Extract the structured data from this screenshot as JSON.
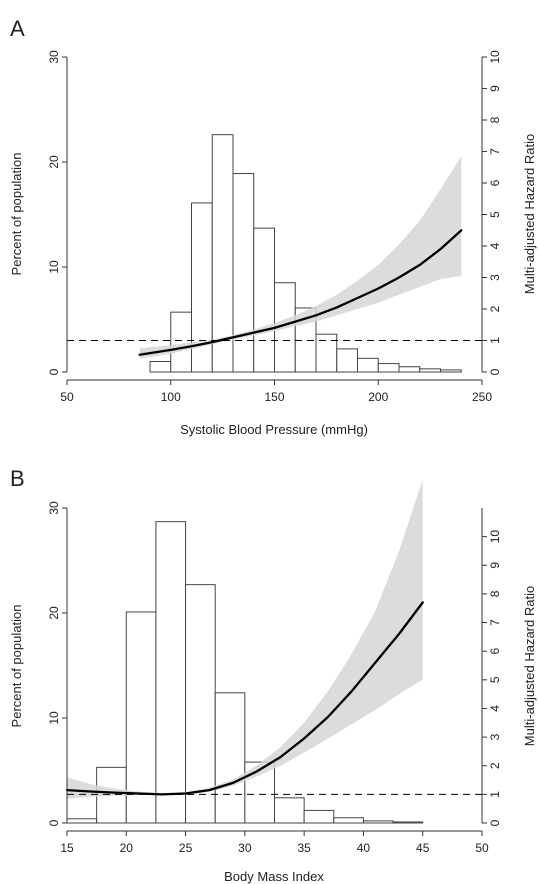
{
  "colors": {
    "axis": "#333333",
    "bar_fill": "#ffffff",
    "bar_stroke": "#444444",
    "band_fill": "#d6d6d6",
    "curve": "#000000",
    "reference_line": "#000000"
  },
  "chart_data": [
    {
      "panel_label": "A",
      "type": "bar+line",
      "xlabel": "Systolic Blood Pressure (mmHg)",
      "ylabel_left": "Percent of population",
      "ylabel_right": "Multi-adjusted Hazard Ratio",
      "xlim": [
        50,
        250
      ],
      "ylim_left": [
        0,
        30
      ],
      "ylim_right": [
        0,
        10
      ],
      "x_ticks": [
        50,
        100,
        150,
        200,
        250
      ],
      "y_ticks_left": [
        0,
        10,
        20,
        30
      ],
      "y_ticks_right": [
        0,
        1,
        2,
        3,
        4,
        5,
        6,
        7,
        8,
        9,
        10
      ],
      "grid": false,
      "histogram": {
        "bin_width": 10,
        "bin_starts": [
          90,
          100,
          110,
          120,
          130,
          140,
          150,
          160,
          170,
          180,
          190,
          200,
          210,
          220,
          230
        ],
        "percent": [
          1.0,
          5.7,
          16.1,
          22.6,
          18.9,
          13.7,
          8.5,
          6.1,
          3.6,
          2.2,
          1.3,
          0.8,
          0.5,
          0.3,
          0.2
        ]
      },
      "hazard_ratio": {
        "x": [
          85,
          100,
          110,
          120,
          130,
          140,
          150,
          160,
          170,
          180,
          190,
          200,
          210,
          220,
          230,
          240
        ],
        "hr": [
          0.55,
          0.7,
          0.82,
          0.95,
          1.1,
          1.25,
          1.4,
          1.6,
          1.8,
          2.05,
          2.35,
          2.65,
          3.0,
          3.4,
          3.9,
          4.5
        ],
        "ci_lower": [
          0.42,
          0.58,
          0.73,
          0.88,
          1.03,
          1.16,
          1.3,
          1.45,
          1.6,
          1.8,
          2.0,
          2.2,
          2.45,
          2.7,
          2.95,
          3.05
        ],
        "ci_upper": [
          0.75,
          0.85,
          0.94,
          1.03,
          1.17,
          1.35,
          1.55,
          1.8,
          2.1,
          2.45,
          2.9,
          3.4,
          4.05,
          4.8,
          5.8,
          6.85
        ]
      },
      "reference_hr": 1
    },
    {
      "panel_label": "B",
      "type": "bar+line",
      "xlabel": "Body Mass Index",
      "ylabel_left": "Percent of population",
      "ylabel_right": "Multi-adjusted Hazard Ratio",
      "xlim": [
        15,
        50
      ],
      "ylim_left": [
        0,
        30
      ],
      "ylim_right": [
        0,
        11
      ],
      "x_ticks": [
        15,
        20,
        25,
        30,
        35,
        40,
        45,
        50
      ],
      "y_ticks_left": [
        0,
        10,
        20,
        30
      ],
      "y_ticks_right": [
        0,
        1,
        2,
        3,
        4,
        5,
        6,
        7,
        8,
        9,
        10
      ],
      "grid": false,
      "histogram": {
        "bin_width": 2.5,
        "bin_starts": [
          15,
          17.5,
          20,
          22.5,
          25,
          27.5,
          30,
          32.5,
          35,
          37.5,
          40,
          42.5
        ],
        "percent": [
          0.4,
          5.3,
          20.1,
          28.7,
          22.7,
          12.4,
          5.8,
          2.4,
          1.2,
          0.5,
          0.2,
          0.1
        ]
      },
      "hazard_ratio": {
        "x": [
          15,
          17,
          19,
          21,
          23,
          25,
          27,
          29,
          31,
          33,
          35,
          37,
          39,
          41,
          43,
          45
        ],
        "hr": [
          1.15,
          1.1,
          1.06,
          1.03,
          1.0,
          1.03,
          1.15,
          1.4,
          1.8,
          2.3,
          2.95,
          3.7,
          4.6,
          5.6,
          6.6,
          7.7
        ],
        "ci_lower": [
          0.85,
          0.92,
          0.95,
          0.98,
          0.97,
          0.99,
          1.09,
          1.3,
          1.62,
          2.0,
          2.45,
          2.95,
          3.45,
          3.95,
          4.5,
          5.0
        ],
        "ci_upper": [
          1.6,
          1.35,
          1.2,
          1.1,
          1.04,
          1.08,
          1.23,
          1.52,
          2.0,
          2.65,
          3.5,
          4.6,
          5.9,
          7.4,
          9.5,
          12.0
        ]
      },
      "reference_hr": 1
    }
  ]
}
